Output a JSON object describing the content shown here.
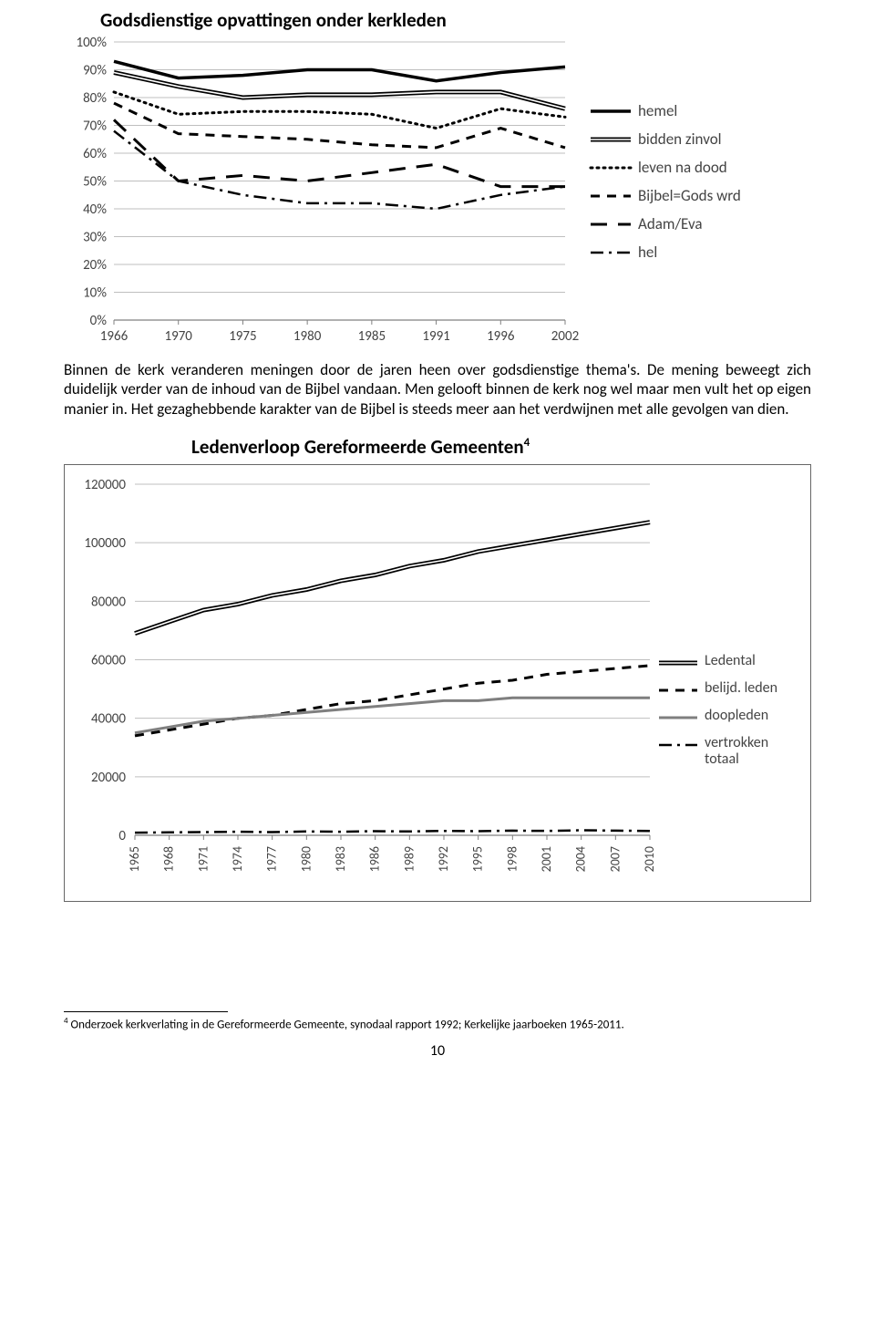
{
  "chart1": {
    "title": "Godsdienstige opvattingen onder kerkleden",
    "type": "line",
    "x_labels": [
      "1966",
      "1970",
      "1975",
      "1980",
      "1985",
      "1991",
      "1996",
      "2002"
    ],
    "y_ticks": [
      0,
      10,
      20,
      30,
      40,
      50,
      60,
      70,
      80,
      90,
      100
    ],
    "y_tick_suffix": "%",
    "ylim": [
      0,
      100
    ],
    "grid_color": "#bfbfbf",
    "axis_color": "#808080",
    "series": [
      {
        "name": "hemel",
        "style": "solid-thick",
        "color": "#000000",
        "values": [
          93,
          87,
          88,
          90,
          90,
          86,
          89,
          91
        ]
      },
      {
        "name": "bidden zinvol",
        "style": "double",
        "color": "#000000",
        "values": [
          89,
          84,
          80,
          81,
          81,
          82,
          82,
          76
        ]
      },
      {
        "name": "leven na dood",
        "style": "dotted",
        "color": "#000000",
        "values": [
          82,
          74,
          75,
          75,
          74,
          69,
          76,
          73
        ]
      },
      {
        "name": "Bijbel=Gods wrd",
        "style": "dashed",
        "color": "#000000",
        "values": [
          78,
          67,
          66,
          65,
          63,
          62,
          69,
          62
        ]
      },
      {
        "name": "Adam/Eva",
        "style": "longdash",
        "color": "#000000",
        "values": [
          72,
          50,
          52,
          50,
          53,
          56,
          48,
          48
        ]
      },
      {
        "name": "hel",
        "style": "dashdot",
        "color": "#000000",
        "values": [
          68,
          50,
          45,
          42,
          42,
          40,
          45,
          48
        ]
      }
    ]
  },
  "paragraph": "Binnen de kerk veranderen meningen door de jaren heen over godsdienstige thema's. De mening beweegt zich duidelijk verder van de inhoud van de Bijbel vandaan. Men gelooft binnen de kerk nog wel maar men vult het op eigen manier in. Het gezaghebbende karakter van de Bijbel is steeds meer aan het verdwijnen met alle gevolgen van dien.",
  "chart2": {
    "title": "Ledenverloop Gereformeerde Gemeenten",
    "title_sup": "4",
    "type": "line",
    "x_labels": [
      "1965",
      "1968",
      "1971",
      "1974",
      "1977",
      "1980",
      "1983",
      "1986",
      "1989",
      "1992",
      "1995",
      "1998",
      "2001",
      "2004",
      "2007",
      "2010"
    ],
    "y_ticks": [
      0,
      20000,
      40000,
      60000,
      80000,
      100000,
      120000
    ],
    "ylim": [
      0,
      120000
    ],
    "grid_color": "#bfbfbf",
    "axis_color": "#808080",
    "series": [
      {
        "name": "Ledental",
        "style": "double",
        "color": "#000000",
        "values": [
          69000,
          73000,
          77000,
          79000,
          82000,
          84000,
          87000,
          89000,
          92000,
          94000,
          97000,
          99000,
          101000,
          103000,
          105000,
          107000
        ]
      },
      {
        "name": "belijd. leden",
        "style": "dashed",
        "color": "#000000",
        "values": [
          34000,
          36000,
          38000,
          40000,
          41000,
          43000,
          45000,
          46000,
          48000,
          50000,
          52000,
          53000,
          55000,
          56000,
          57000,
          58000
        ]
      },
      {
        "name": "doopleden",
        "style": "solid-gray",
        "color": "#7f7f7f",
        "values": [
          35000,
          37000,
          39000,
          40000,
          41000,
          42000,
          43000,
          44000,
          45000,
          46000,
          46000,
          47000,
          47000,
          47000,
          47000,
          47000
        ]
      },
      {
        "name": "vertrokken totaal",
        "style": "dashdot",
        "color": "#000000",
        "values": [
          900,
          1000,
          1100,
          1200,
          1100,
          1300,
          1200,
          1400,
          1300,
          1500,
          1400,
          1600,
          1500,
          1700,
          1600,
          1500
        ]
      }
    ]
  },
  "footnote": {
    "sup": "4",
    "text": "Onderzoek kerkverlating in de Gereformeerde Gemeente, synodaal rapport 1992; Kerkelijke jaarboeken 1965-2011."
  },
  "page_number": "10"
}
